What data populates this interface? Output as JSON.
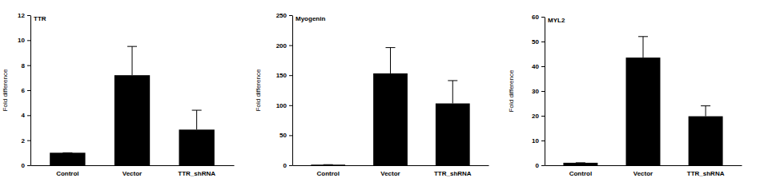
{
  "chart_data": [
    {
      "type": "bar",
      "title": "TTR",
      "ylabel": "Fold difference",
      "categories": [
        "Control",
        "Vector",
        "TTR_shRNA"
      ],
      "values": [
        1,
        7.2,
        2.85
      ],
      "errors": [
        0,
        2.3,
        1.55
      ],
      "color": "#000000",
      "ylim": [
        0,
        12
      ],
      "yticks": [
        0,
        2,
        4,
        6,
        8,
        10,
        12
      ]
    },
    {
      "type": "bar",
      "title": "Myogenin",
      "ylabel": "Fold difference",
      "categories": [
        "Control",
        "Vector",
        "TTR_shRNA"
      ],
      "values": [
        1,
        153,
        103
      ],
      "errors": [
        0,
        43,
        38
      ],
      "color": "#000000",
      "ylim": [
        0,
        250
      ],
      "yticks": [
        0,
        50,
        100,
        150,
        200,
        250
      ]
    },
    {
      "type": "bar",
      "title": "MYL2",
      "ylabel": "Fold difference",
      "categories": [
        "Control",
        "Vector",
        "TTR_shRNA"
      ],
      "values": [
        1,
        43.5,
        19.8
      ],
      "errors": [
        0,
        8.5,
        4.2
      ],
      "color": "#000000",
      "ylim": [
        0,
        60
      ],
      "yticks": [
        0,
        10,
        20,
        30,
        40,
        50,
        60
      ]
    }
  ]
}
